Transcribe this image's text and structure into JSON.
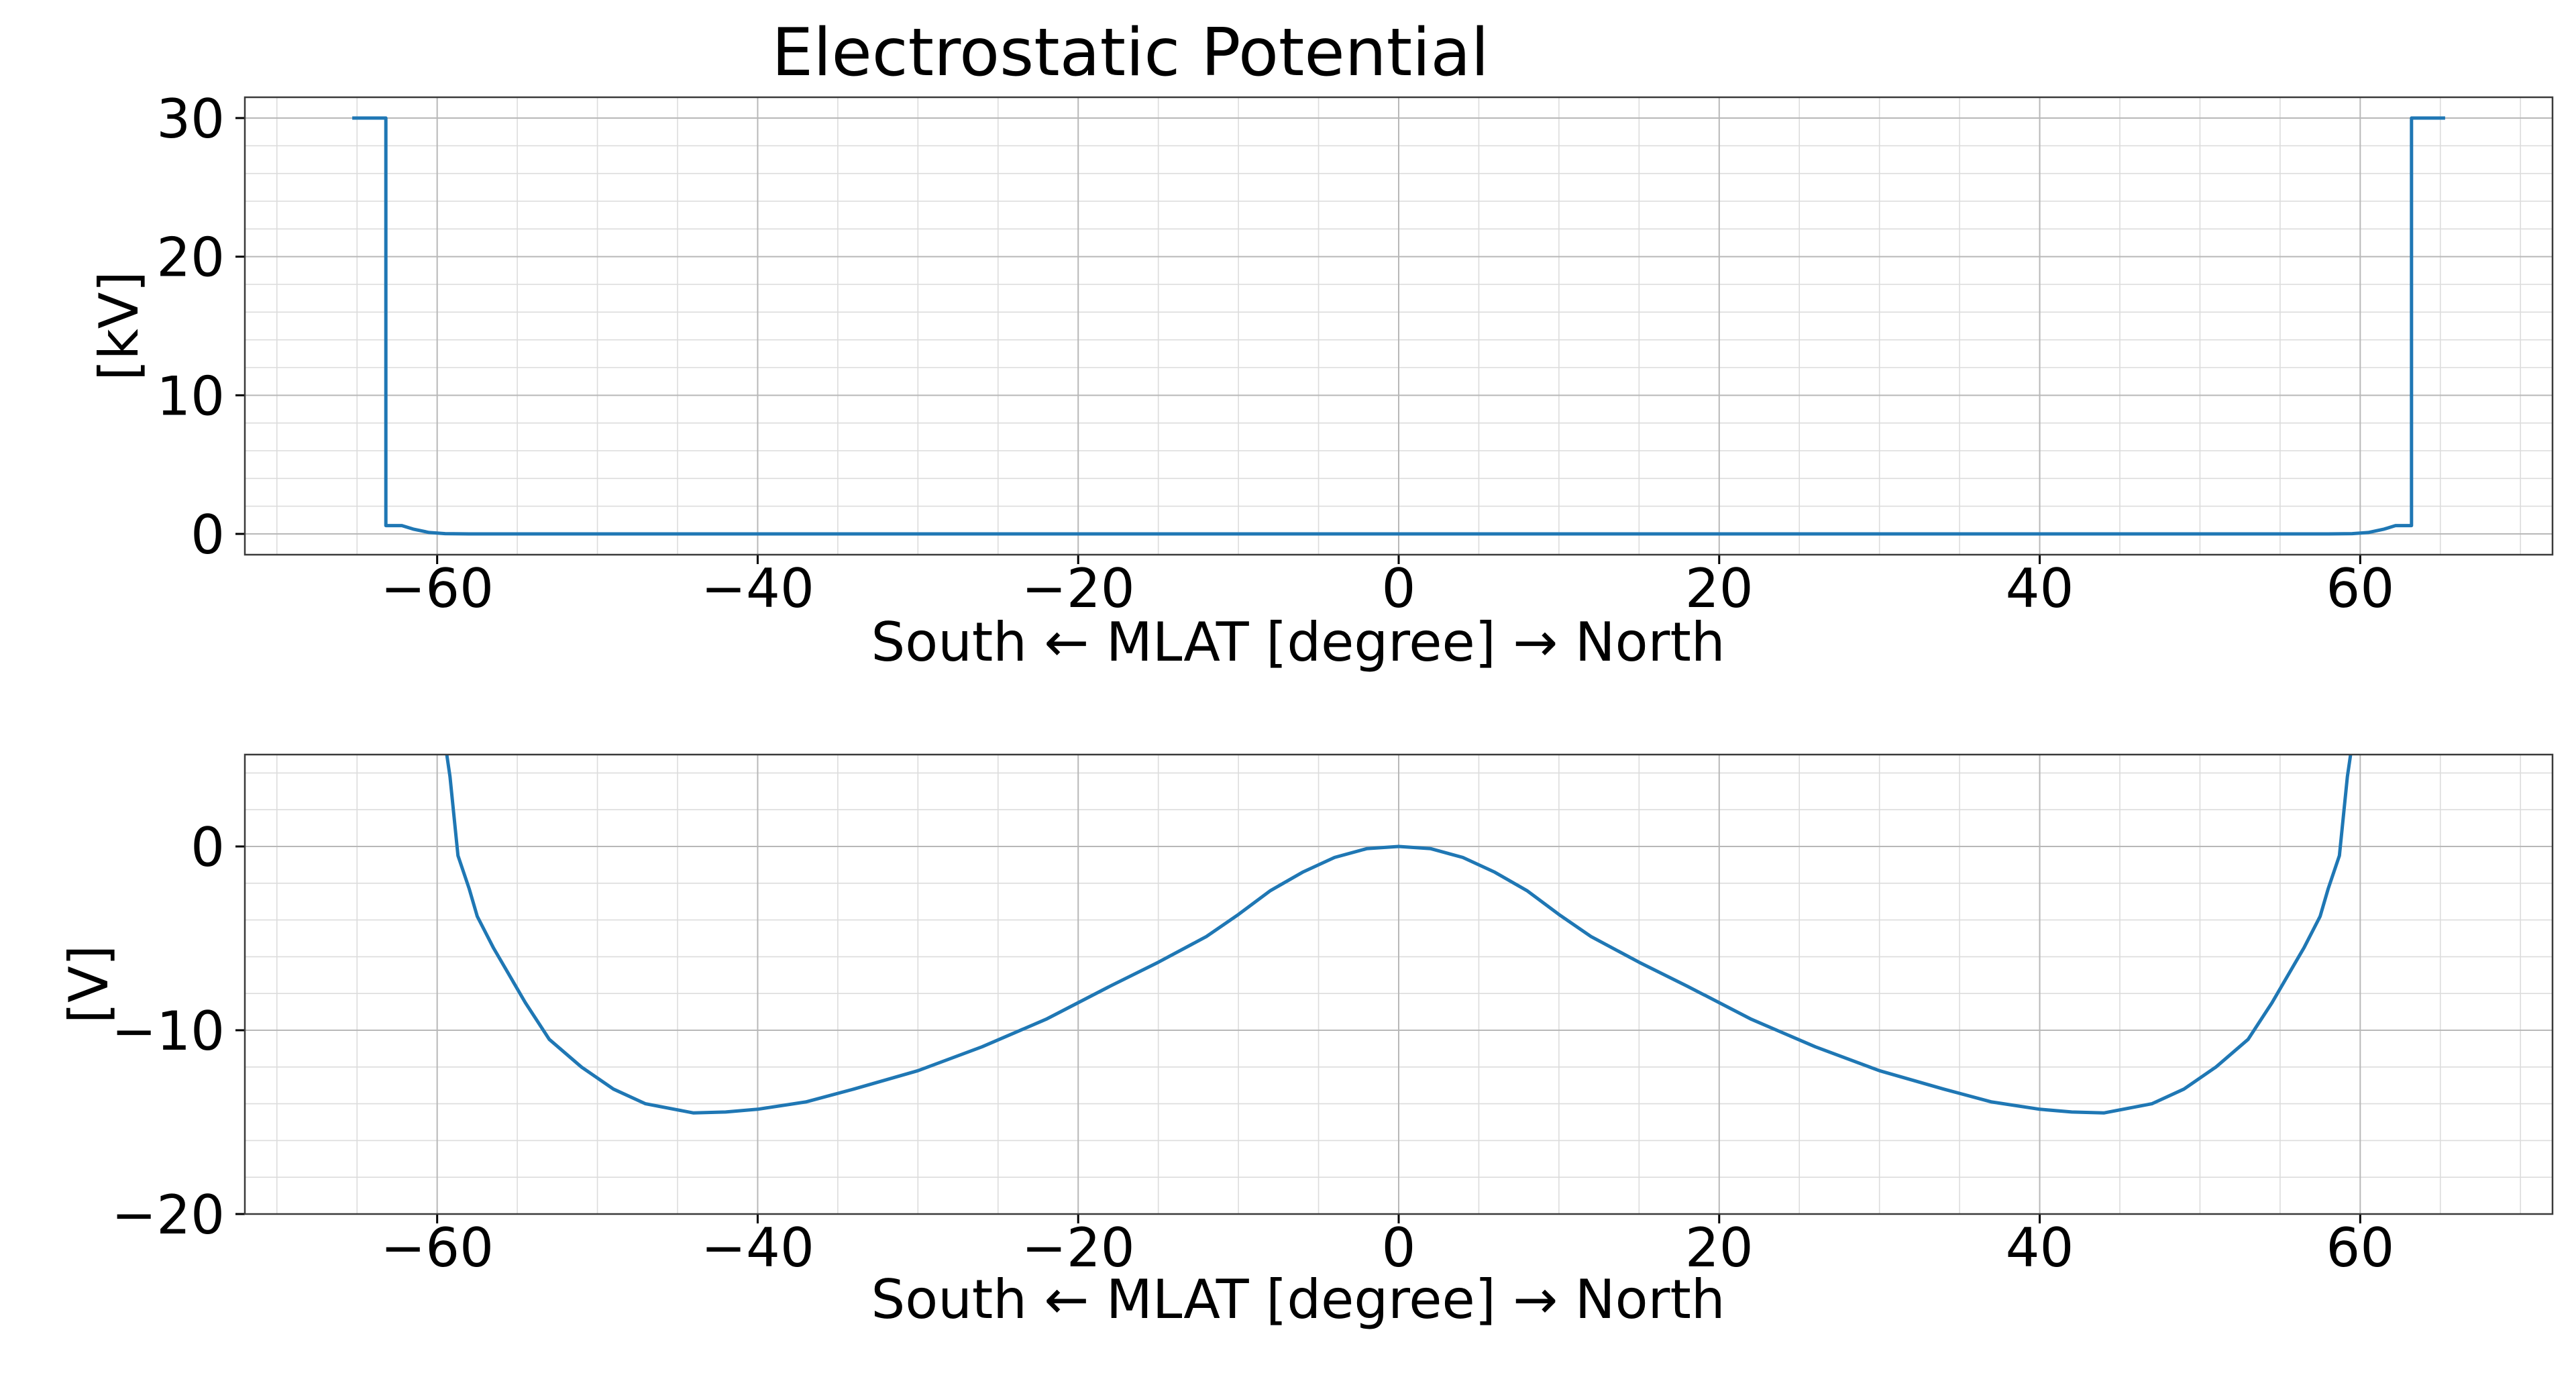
{
  "chart_data": [
    {
      "type": "line",
      "title": "Electrostatic Potential",
      "xlabel": "South ← MLAT [degree] → North",
      "ylabel": "[kV]",
      "xlim": [
        -72,
        72
      ],
      "ylim": [
        -1.5,
        31.5
      ],
      "xticks": [
        -60,
        -40,
        -20,
        0,
        20,
        40,
        60
      ],
      "xtick_labels": [
        "−60",
        "−40",
        "−20",
        "0",
        "20",
        "40",
        "60"
      ],
      "yticks": [
        0,
        10,
        20,
        30
      ],
      "ytick_labels": [
        "0",
        "10",
        "20",
        "30"
      ],
      "grid": true,
      "series": [
        {
          "color": "#1f77b4",
          "x": [
            -65.3,
            -63.2,
            -63.2,
            -62.2,
            -61.5,
            -60.5,
            -59.5,
            -58,
            -40,
            -20,
            0,
            20,
            40,
            58,
            59.5,
            60.5,
            61.5,
            62.2,
            63.2,
            63.2,
            65.3
          ],
          "y": [
            30,
            30,
            0.6,
            0.6,
            0.35,
            0.1,
            0.02,
            0,
            0,
            0,
            0,
            0,
            0,
            0,
            0.02,
            0.1,
            0.35,
            0.6,
            0.6,
            30,
            30
          ]
        }
      ]
    },
    {
      "type": "line",
      "title": "",
      "xlabel": "South ← MLAT [degree] → North",
      "ylabel": "[V]",
      "xlim": [
        -72,
        72
      ],
      "ylim": [
        -20,
        5
      ],
      "xticks": [
        -60,
        -40,
        -20,
        0,
        20,
        40,
        60
      ],
      "xtick_labels": [
        "−60",
        "−40",
        "−20",
        "0",
        "20",
        "40",
        "60"
      ],
      "yticks": [
        -20,
        -10,
        0
      ],
      "ytick_labels": [
        "−20",
        "−10",
        "0"
      ],
      "grid": true,
      "series": [
        {
          "color": "#1f77b4",
          "x": [
            -59.4,
            -59.2,
            -58.7,
            -58,
            -57.5,
            -56.5,
            -55.5,
            -54.5,
            -53,
            -51,
            -49,
            -47,
            -44,
            -42,
            -40,
            -37,
            -34,
            -30,
            -26,
            -22,
            -18,
            -15,
            -12,
            -10,
            -8,
            -6,
            -4,
            -2,
            0,
            2,
            4,
            6,
            8,
            10,
            12,
            15,
            18,
            22,
            26,
            30,
            34,
            37,
            40,
            42,
            44,
            47,
            49,
            51,
            53,
            54.5,
            55.5,
            56.5,
            57.5,
            58,
            58.7,
            59.2,
            59.4
          ],
          "y": [
            5,
            3.8,
            -0.5,
            -2.3,
            -3.8,
            -5.5,
            -7.0,
            -8.5,
            -10.5,
            -12.0,
            -13.2,
            -14.0,
            -14.5,
            -14.45,
            -14.3,
            -13.9,
            -13.2,
            -12.2,
            -10.9,
            -9.4,
            -7.6,
            -6.3,
            -4.9,
            -3.7,
            -2.4,
            -1.4,
            -0.6,
            -0.12,
            0,
            -0.12,
            -0.6,
            -1.4,
            -2.4,
            -3.7,
            -4.9,
            -6.3,
            -7.6,
            -9.4,
            -10.9,
            -12.2,
            -13.2,
            -13.9,
            -14.3,
            -14.45,
            -14.5,
            -14.0,
            -13.2,
            -12.0,
            -10.5,
            -8.5,
            -7.0,
            -5.5,
            -3.8,
            -2.3,
            -0.5,
            3.8,
            5
          ]
        }
      ]
    }
  ]
}
